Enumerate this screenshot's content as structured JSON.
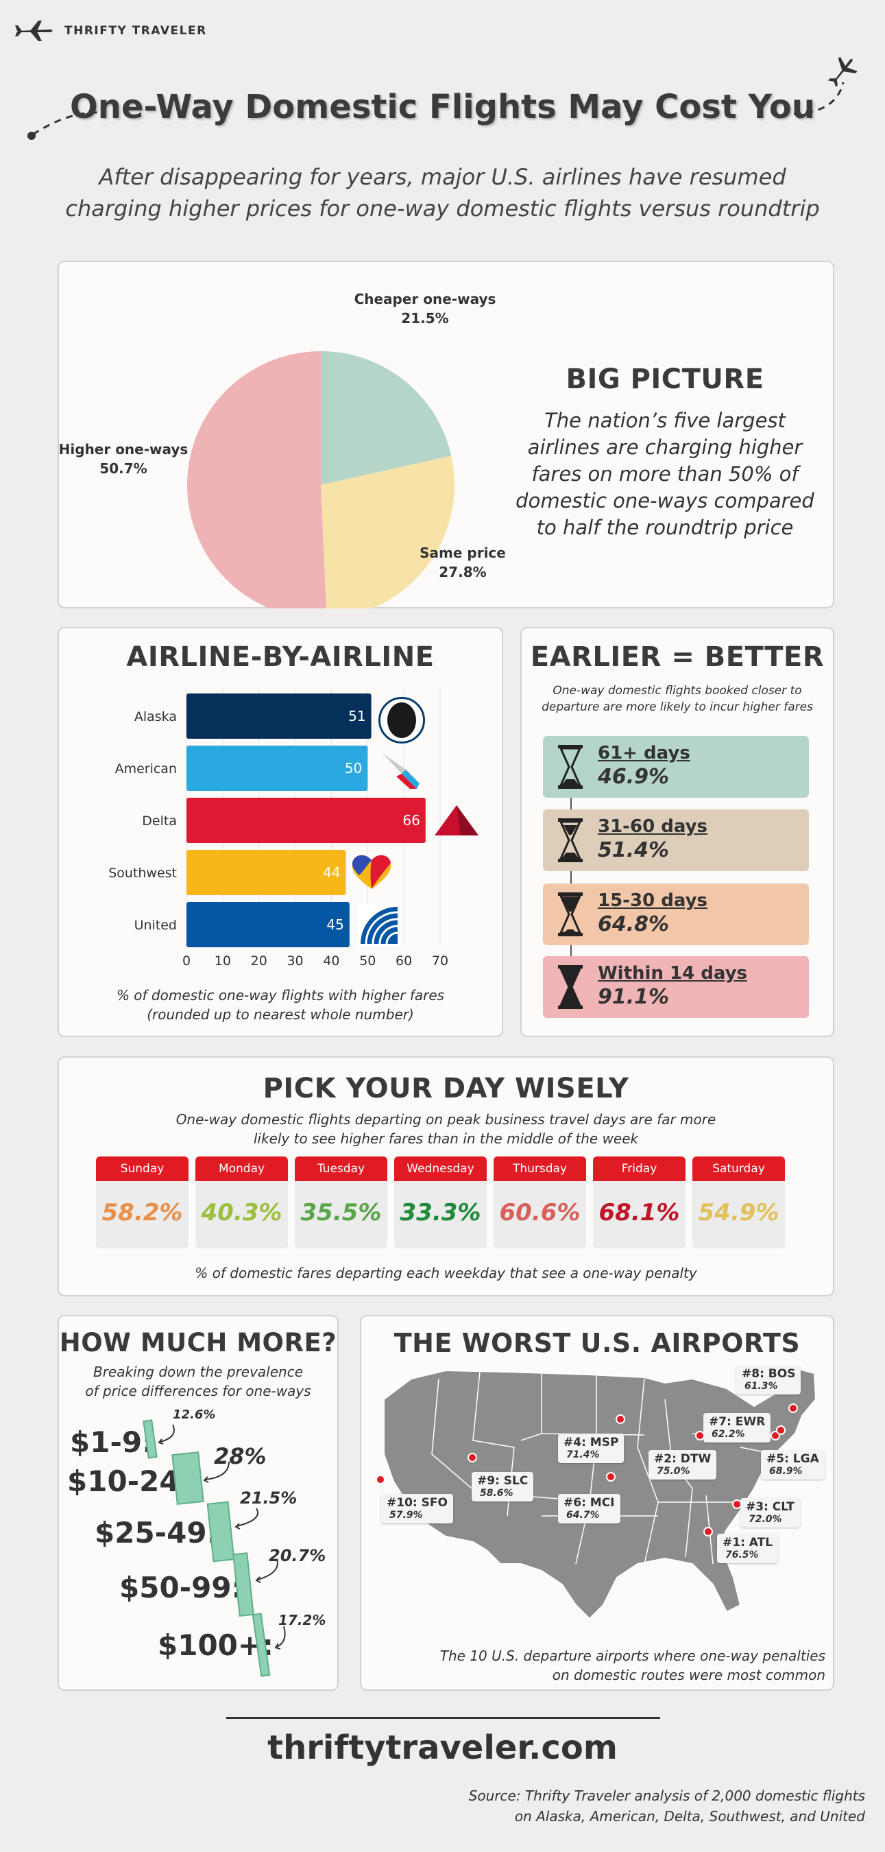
{
  "brand": {
    "name": "THRIFTY TRAVELER"
  },
  "header": {
    "title": "One-Way Domestic Flights May Cost You",
    "subtitle_line1": "After disappearing for years, major U.S. airlines have resumed",
    "subtitle_line2": "charging higher prices for one-way domestic flights versus roundtrip"
  },
  "big_picture": {
    "title": "BIG PICTURE",
    "text_lines": [
      "The nation’s five largest",
      "airlines are charging higher",
      "fares on more than 50% of",
      "domestic one-ways compared",
      "to half the roundtrip price"
    ]
  },
  "airline_section": {
    "title": "AIRLINE-BY-AIRLINE",
    "caption_line1": "% of domestic one-way flights with higher fares",
    "caption_line2": "(rounded up to nearest whole number)"
  },
  "earlier_section": {
    "title": "EARLIER = BETTER",
    "subtitle_line1": "One-way domestic flights booked closer to",
    "subtitle_line2": "departure are more likely to incur higher fares",
    "tickets": [
      {
        "days": "61+ days",
        "pct": "46.9%",
        "color": "#b4d5c8"
      },
      {
        "days": "31-60 days",
        "pct": "51.4%",
        "color": "#decdb9"
      },
      {
        "days": "15-30 days",
        "pct": "64.8%",
        "color": "#f2c6a8"
      },
      {
        "days": "Within 14 days",
        "pct": "91.1%",
        "color": "#f0b4b6"
      }
    ]
  },
  "days_section": {
    "title": "PICK YOUR DAY WISELY",
    "subtitle_line1": "One-way domestic flights departing on peak business travel days are far more",
    "subtitle_line2": "likely to see higher fares than in the middle of the week",
    "caption": "% of domestic fares departing each weekday that see a one-way penalty",
    "days": [
      {
        "day": "Sunday",
        "pct": "58.2%",
        "color": "#e8904a"
      },
      {
        "day": "Monday",
        "pct": "40.3%",
        "color": "#9cbf3e"
      },
      {
        "day": "Tuesday",
        "pct": "35.5%",
        "color": "#5aa54a"
      },
      {
        "day": "Wednesday",
        "pct": "33.3%",
        "color": "#1f8a3a"
      },
      {
        "day": "Thursday",
        "pct": "60.6%",
        "color": "#d9605a"
      },
      {
        "day": "Friday",
        "pct": "68.1%",
        "color": "#c0162a"
      },
      {
        "day": "Saturday",
        "pct": "54.9%",
        "color": "#e2c05a"
      }
    ]
  },
  "how_much": {
    "title": "HOW MUCH MORE?",
    "subtitle_line1": "Breaking down the prevalence",
    "subtitle_line2": "of price differences for one-ways",
    "rows": [
      {
        "range": "$1-9:",
        "pct": "12.6%"
      },
      {
        "range": "$10-24:",
        "pct": "28%"
      },
      {
        "range": "$25-49:",
        "pct": "21.5%"
      },
      {
        "range": "$50-99:",
        "pct": "20.7%"
      },
      {
        "range": "$100+:",
        "pct": "17.2%"
      }
    ]
  },
  "airports": {
    "title": "THE WORST U.S. AIRPORTS",
    "caption_line1": "The 10 U.S. departure airports where one-way penalties",
    "caption_line2": "on domestic routes were most common",
    "list": [
      {
        "name": "#8: BOS",
        "pct": "61.3%"
      },
      {
        "name": "#7: EWR",
        "pct": "62.2%"
      },
      {
        "name": "#4: MSP",
        "pct": "71.4%"
      },
      {
        "name": "#2: DTW",
        "pct": "75.0%"
      },
      {
        "name": "#5: LGA",
        "pct": "68.9%"
      },
      {
        "name": "#9: SLC",
        "pct": "58.6%"
      },
      {
        "name": "#6: MCI",
        "pct": "64.7%"
      },
      {
        "name": "#3: CLT",
        "pct": "72.0%"
      },
      {
        "name": "#10: SFO",
        "pct": "57.9%"
      },
      {
        "name": "#1: ATL",
        "pct": "76.5%"
      }
    ]
  },
  "footer": {
    "url": "thriftytraveler.com",
    "source_line1": "Source: Thrifty Traveler analysis of 2,000 domestic flights",
    "source_line2": "on Alaska, American, Delta, Southwest, and United"
  },
  "chart_data": [
    {
      "type": "pie",
      "labels": [
        "Cheaper one-ways",
        "Same price",
        "Higher one-ways"
      ],
      "values": [
        21.5,
        27.8,
        50.7
      ],
      "value_labels": [
        "21.5%",
        "27.8%",
        "50.7%"
      ],
      "colors": [
        "#b4d5c8",
        "#f7e3a8",
        "#efb3b5"
      ]
    },
    {
      "type": "bar",
      "orientation": "horizontal",
      "categories": [
        "Alaska",
        "American",
        "Delta",
        "Southwest",
        "United"
      ],
      "values": [
        51,
        50,
        66,
        44,
        45
      ],
      "colors": [
        "#04305a",
        "#2aa8e0",
        "#e01933",
        "#f7b718",
        "#0557a4"
      ],
      "xlim": [
        0,
        70
      ],
      "ticks": [
        0,
        10,
        20,
        30,
        40,
        50,
        60,
        70
      ],
      "grid": true
    }
  ]
}
